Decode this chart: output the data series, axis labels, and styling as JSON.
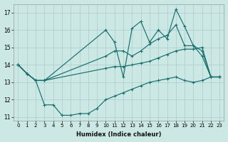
{
  "xlabel": "Humidex (Indice chaleur)",
  "bg_color": "#cce8e4",
  "grid_color": "#aacccc",
  "line_color": "#1a6e6e",
  "ylim": [
    10.8,
    17.5
  ],
  "xlim": [
    -0.5,
    23.5
  ],
  "yticks": [
    11,
    12,
    13,
    14,
    15,
    16,
    17
  ],
  "xticks": [
    0,
    1,
    2,
    3,
    4,
    5,
    6,
    7,
    8,
    9,
    10,
    11,
    12,
    13,
    14,
    15,
    16,
    17,
    18,
    19,
    20,
    21,
    22,
    23
  ],
  "line_jagged_x": [
    0,
    1,
    2,
    3,
    10,
    11,
    12,
    13,
    14,
    15,
    16,
    17,
    18,
    19,
    20,
    21,
    22,
    23
  ],
  "line_jagged_y": [
    14.0,
    13.5,
    13.1,
    13.1,
    16.0,
    15.3,
    13.3,
    16.1,
    16.5,
    15.3,
    16.0,
    15.5,
    17.2,
    16.2,
    15.1,
    14.8,
    13.3,
    13.3
  ],
  "line_upper_x": [
    0,
    1,
    2,
    3,
    10,
    11,
    12,
    13,
    14,
    15,
    16,
    17,
    18,
    19,
    20,
    21,
    22,
    23
  ],
  "line_upper_y": [
    14.0,
    13.5,
    13.1,
    13.1,
    14.5,
    14.8,
    14.8,
    14.5,
    14.8,
    15.2,
    15.5,
    15.7,
    16.3,
    15.1,
    15.1,
    14.5,
    13.3,
    13.3
  ],
  "line_lower_x": [
    0,
    1,
    2,
    3,
    10,
    11,
    12,
    13,
    14,
    15,
    16,
    17,
    18,
    19,
    20,
    21,
    22,
    23
  ],
  "line_lower_y": [
    14.0,
    13.5,
    13.1,
    13.1,
    13.8,
    13.9,
    13.9,
    14.0,
    14.1,
    14.2,
    14.4,
    14.6,
    14.8,
    14.9,
    14.9,
    15.0,
    13.3,
    13.3
  ],
  "line_bottom_x": [
    0,
    1,
    2,
    3,
    4,
    5,
    6,
    7,
    8,
    9,
    10,
    11,
    12,
    13,
    14,
    15,
    16,
    17,
    18,
    19,
    20,
    21,
    22,
    23
  ],
  "line_bottom_y": [
    14.0,
    13.5,
    13.1,
    11.7,
    11.7,
    11.1,
    11.1,
    11.2,
    11.2,
    11.5,
    12.0,
    12.2,
    12.4,
    12.6,
    12.8,
    13.0,
    13.1,
    13.2,
    13.3,
    13.1,
    13.0,
    13.1,
    13.3,
    13.3
  ]
}
